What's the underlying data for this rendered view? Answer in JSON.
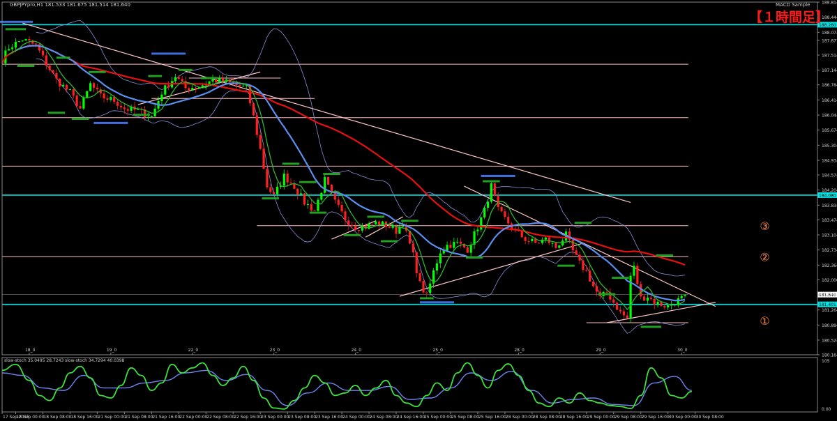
{
  "window": {
    "header_text": "GBPJPYpro,H1  181.533 181.675 181.514 181.640",
    "indicator_name": "MACD Sample",
    "timeframe_badge": "【１時間足】"
  },
  "colors": {
    "background": "#000000",
    "bull_candle": "#00ff00",
    "bear_candle": "#ff2020",
    "ma_slow": "#e81010",
    "ma_mid": "#5b8ff0",
    "ma_fast": "#2db82d",
    "bollinger": "#8a8fd8",
    "trendline": "#ffc8c8",
    "hline_pink": "#ffc0c0",
    "hline_cyan": "#00e6e6",
    "swing_green": "#22a022",
    "swing_blue": "#3f6fe0",
    "stoch_main": "#3de03d",
    "stoch_signal": "#6f86f0",
    "price_tag_bg": "#ffffff",
    "badge_color": "#ff1a1a",
    "annotation_color": "#ff8a4a"
  },
  "chart_data": {
    "type": "candlestick",
    "symbol": "GBPJPYpro",
    "timeframe": "H1",
    "ohlc_header": {
      "open": 181.533,
      "high": 181.675,
      "low": 181.514,
      "close": 181.64
    },
    "y_axis": {
      "min": 180.164,
      "max": 188.814,
      "ticks": [
        188.814,
        188.444,
        188.074,
        187.877,
        187.514,
        187.144,
        186.784,
        186.414,
        186.044,
        185.674,
        185.304,
        184.934,
        184.574,
        184.204,
        183.834,
        183.474,
        183.104,
        182.734,
        182.364,
        182.0,
        181.634,
        181.264,
        180.894,
        180.524,
        180.164
      ]
    },
    "x_axis": {
      "ticks": [
        {
          "label": "17 Sep 2015",
          "t": 0
        },
        {
          "label": "18 Sep 00:00",
          "t": 4
        },
        {
          "label": "18 Sep 08:00",
          "t": 12
        },
        {
          "label": "18 Sep 16:00",
          "t": 20
        },
        {
          "label": "21 Sep 00:00",
          "t": 28
        },
        {
          "label": "21 Sep 08:00",
          "t": 36
        },
        {
          "label": "21 Sep 16:00",
          "t": 44
        },
        {
          "label": "22 Sep 00:00",
          "t": 52
        },
        {
          "label": "22 Sep 08:00",
          "t": 60
        },
        {
          "label": "22 Sep 16:00",
          "t": 68
        },
        {
          "label": "23 Sep 00:00",
          "t": 76
        },
        {
          "label": "23 Sep 08:00",
          "t": 84
        },
        {
          "label": "23 Sep 16:00",
          "t": 92
        },
        {
          "label": "24 Sep 00:00",
          "t": 100
        },
        {
          "label": "24 Sep 08:00",
          "t": 108
        },
        {
          "label": "24 Sep 16:00",
          "t": 116
        },
        {
          "label": "25 Sep 00:00",
          "t": 124
        },
        {
          "label": "25 Sep 08:00",
          "t": 132
        },
        {
          "label": "25 Sep 16:00",
          "t": 140
        },
        {
          "label": "28 Sep 00:00",
          "t": 148
        },
        {
          "label": "28 Sep 08:00",
          "t": 156
        },
        {
          "label": "28 Sep 16:00",
          "t": 164
        },
        {
          "label": "29 Sep 00:00",
          "t": 172
        },
        {
          "label": "29 Sep 08:00",
          "t": 180
        },
        {
          "label": "29 Sep 16:00",
          "t": 188
        },
        {
          "label": "30 Sep 00:00",
          "t": 196
        },
        {
          "label": "30 Sep 08:00",
          "t": 204
        }
      ],
      "day_labels": [
        {
          "label": "18_0",
          "t": 8
        },
        {
          "label": "19_0",
          "t": 32
        },
        {
          "label": "22_0",
          "t": 56
        },
        {
          "label": "23_0",
          "t": 80
        },
        {
          "label": "24_0",
          "t": 104
        },
        {
          "label": "25_0",
          "t": 128
        },
        {
          "label": "28_0",
          "t": 152
        },
        {
          "label": "29_0",
          "t": 176
        },
        {
          "label": "30_0",
          "t": 200
        }
      ]
    },
    "path_keypoints": [
      [
        0,
        187.4
      ],
      [
        2,
        187.7
      ],
      [
        6,
        187.9
      ],
      [
        10,
        187.75
      ],
      [
        13,
        187.3
      ],
      [
        16,
        186.9
      ],
      [
        20,
        186.6
      ],
      [
        23,
        186.2
      ],
      [
        26,
        186.8
      ],
      [
        29,
        186.5
      ],
      [
        33,
        186.4
      ],
      [
        36,
        186.2
      ],
      [
        40,
        186.15
      ],
      [
        44,
        186.0
      ],
      [
        47,
        186.6
      ],
      [
        51,
        187.0
      ],
      [
        54,
        186.7
      ],
      [
        58,
        186.75
      ],
      [
        62,
        186.9
      ],
      [
        66,
        186.85
      ],
      [
        70,
        186.75
      ],
      [
        72,
        186.7
      ],
      [
        74,
        186.0
      ],
      [
        76,
        185.2
      ],
      [
        78,
        184.3
      ],
      [
        80,
        184.05
      ],
      [
        83,
        184.55
      ],
      [
        86,
        184.3
      ],
      [
        89,
        183.9
      ],
      [
        92,
        183.7
      ],
      [
        95,
        184.45
      ],
      [
        98,
        183.9
      ],
      [
        101,
        183.5
      ],
      [
        104,
        183.3
      ],
      [
        107,
        183.3
      ],
      [
        110,
        183.4
      ],
      [
        113,
        183.35
      ],
      [
        116,
        183.2
      ],
      [
        118,
        183.4
      ],
      [
        121,
        182.6
      ],
      [
        123,
        181.9
      ],
      [
        125,
        181.6
      ],
      [
        127,
        182.2
      ],
      [
        129,
        182.7
      ],
      [
        131,
        182.85
      ],
      [
        134,
        182.9
      ],
      [
        137,
        182.75
      ],
      [
        140,
        183.3
      ],
      [
        142,
        183.7
      ],
      [
        144,
        184.3
      ],
      [
        146,
        183.7
      ],
      [
        148,
        183.5
      ],
      [
        151,
        183.2
      ],
      [
        154,
        183.0
      ],
      [
        157,
        182.9
      ],
      [
        160,
        183.0
      ],
      [
        163,
        182.8
      ],
      [
        166,
        183.1
      ],
      [
        168,
        182.7
      ],
      [
        170,
        182.4
      ],
      [
        172,
        182.2
      ],
      [
        174,
        181.85
      ],
      [
        176,
        181.55
      ],
      [
        178,
        181.7
      ],
      [
        180,
        181.45
      ],
      [
        182,
        181.2
      ],
      [
        184,
        181.05
      ],
      [
        185,
        182.1
      ],
      [
        186,
        182.3
      ],
      [
        188,
        181.55
      ],
      [
        190,
        181.6
      ],
      [
        192,
        181.45
      ],
      [
        194,
        181.4
      ],
      [
        196,
        181.35
      ],
      [
        198,
        181.45
      ],
      [
        200,
        181.55
      ],
      [
        201,
        181.64
      ]
    ],
    "current_price": 181.64,
    "horizontal_lines": [
      {
        "price": 188.26,
        "color": "cyan",
        "label": "188.260"
      },
      {
        "price": 187.29,
        "color": "pink",
        "t_from": 0,
        "t_to": 202
      },
      {
        "price": 186.95,
        "color": "pink",
        "t_from": 55,
        "t_to": 82
      },
      {
        "price": 186.45,
        "color": "pink",
        "t_from": 44,
        "t_to": 92
      },
      {
        "price": 185.98,
        "color": "pink",
        "t_from": 0,
        "t_to": 202
      },
      {
        "price": 184.79,
        "color": "pink",
        "t_from": 0,
        "t_to": 202
      },
      {
        "price": 184.08,
        "color": "cyan",
        "label": "184.080"
      },
      {
        "price": 183.33,
        "color": "pink",
        "t_from": 75,
        "t_to": 202
      },
      {
        "price": 182.57,
        "color": "pink",
        "t_from": 0,
        "t_to": 202
      },
      {
        "price": 181.4,
        "color": "cyan",
        "label": "181.401"
      },
      {
        "price": 180.95,
        "color": "pink",
        "t_from": 172,
        "t_to": 202
      },
      {
        "price": 181.64,
        "color": "gray",
        "t_from": 0,
        "t_to": 202
      }
    ],
    "trend_lines": [
      {
        "t1": 6,
        "p1": 188.3,
        "t2": 185,
        "p2": 183.9
      },
      {
        "t1": 40,
        "p1": 186.3,
        "t2": 76,
        "p2": 187.1
      },
      {
        "t1": 136,
        "p1": 184.3,
        "t2": 210,
        "p2": 181.35
      },
      {
        "t1": 117,
        "p1": 181.6,
        "t2": 171,
        "p2": 182.9
      },
      {
        "t1": 178,
        "p1": 180.95,
        "t2": 210,
        "p2": 181.45
      },
      {
        "t1": 97,
        "p1": 183.0,
        "t2": 110,
        "p2": 183.45
      },
      {
        "t1": 107,
        "p1": 183.05,
        "t2": 118,
        "p2": 183.55
      }
    ],
    "swing_markers": [
      {
        "t": 4,
        "p": 188.33,
        "c": "blue",
        "w": 10
      },
      {
        "t": 4,
        "p": 188.15,
        "c": "green",
        "w": 6
      },
      {
        "t": 7,
        "p": 187.25,
        "c": "green",
        "w": 5
      },
      {
        "t": 18,
        "p": 187.45,
        "c": "green",
        "w": 4
      },
      {
        "t": 16,
        "p": 186.1,
        "c": "green",
        "w": 5
      },
      {
        "t": 23,
        "p": 185.95,
        "c": "green",
        "w": 5
      },
      {
        "t": 28,
        "p": 187.1,
        "c": "green",
        "w": 5
      },
      {
        "t": 32,
        "p": 185.85,
        "c": "blue",
        "w": 10
      },
      {
        "t": 41,
        "p": 186.05,
        "c": "green",
        "w": 5
      },
      {
        "t": 49,
        "p": 187.55,
        "c": "blue",
        "w": 10
      },
      {
        "t": 45,
        "p": 187.0,
        "c": "green",
        "w": 4
      },
      {
        "t": 54,
        "p": 187.15,
        "c": "green",
        "w": 4
      },
      {
        "t": 61,
        "p": 186.95,
        "c": "green",
        "w": 5
      },
      {
        "t": 79,
        "p": 184.0,
        "c": "green",
        "w": 5
      },
      {
        "t": 85,
        "p": 184.85,
        "c": "green",
        "w": 5
      },
      {
        "t": 90,
        "p": 184.4,
        "c": "green",
        "w": 5
      },
      {
        "t": 97,
        "p": 184.6,
        "c": "green",
        "w": 5
      },
      {
        "t": 93,
        "p": 183.65,
        "c": "green",
        "w": 5
      },
      {
        "t": 103,
        "p": 183.1,
        "c": "green",
        "w": 5
      },
      {
        "t": 110,
        "p": 183.55,
        "c": "green",
        "w": 5
      },
      {
        "t": 114,
        "p": 182.95,
        "c": "green",
        "w": 5
      },
      {
        "t": 120,
        "p": 183.45,
        "c": "green",
        "w": 5
      },
      {
        "t": 125,
        "p": 181.55,
        "c": "green",
        "w": 4
      },
      {
        "t": 128,
        "p": 181.45,
        "c": "blue",
        "w": 10
      },
      {
        "t": 139,
        "p": 182.55,
        "c": "green",
        "w": 5
      },
      {
        "t": 146,
        "p": 184.55,
        "c": "blue",
        "w": 10
      },
      {
        "t": 144,
        "p": 184.42,
        "c": "green",
        "w": 5
      },
      {
        "t": 166,
        "p": 182.35,
        "c": "green",
        "w": 5
      },
      {
        "t": 171,
        "p": 183.4,
        "c": "green",
        "w": 5
      },
      {
        "t": 178,
        "p": 181.65,
        "c": "green",
        "w": 5
      },
      {
        "t": 182,
        "p": 182.05,
        "c": "green",
        "w": 5
      },
      {
        "t": 191,
        "p": 180.85,
        "c": "green",
        "w": 6
      },
      {
        "t": 195,
        "p": 182.6,
        "c": "green",
        "w": 5
      }
    ],
    "annotations": [
      {
        "label": "③",
        "t": 223,
        "p": 183.33
      },
      {
        "label": "②",
        "t": 223,
        "p": 182.57
      },
      {
        "label": "①",
        "t": 223,
        "p": 181.0
      }
    ],
    "subwindow": {
      "label": "slow-stoch 35.0495 28.7243 slow-stoch 34.7294 40.0398",
      "y_labels": [
        "105",
        "0.00"
      ],
      "main_points": [
        [
          0,
          80
        ],
        [
          4,
          92
        ],
        [
          8,
          60
        ],
        [
          11,
          30
        ],
        [
          14,
          20
        ],
        [
          17,
          45
        ],
        [
          20,
          75
        ],
        [
          23,
          88
        ],
        [
          26,
          65
        ],
        [
          29,
          30
        ],
        [
          32,
          25
        ],
        [
          35,
          50
        ],
        [
          38,
          85
        ],
        [
          41,
          70
        ],
        [
          44,
          40
        ],
        [
          47,
          55
        ],
        [
          50,
          92
        ],
        [
          53,
          75
        ],
        [
          56,
          85
        ],
        [
          59,
          95
        ],
        [
          62,
          70
        ],
        [
          65,
          50
        ],
        [
          68,
          65
        ],
        [
          71,
          88
        ],
        [
          74,
          60
        ],
        [
          77,
          25
        ],
        [
          80,
          5
        ],
        [
          83,
          3
        ],
        [
          86,
          20
        ],
        [
          89,
          45
        ],
        [
          92,
          70
        ],
        [
          95,
          55
        ],
        [
          98,
          30
        ],
        [
          101,
          35
        ],
        [
          104,
          50
        ],
        [
          107,
          30
        ],
        [
          110,
          45
        ],
        [
          113,
          60
        ],
        [
          116,
          30
        ],
        [
          119,
          15
        ],
        [
          122,
          8
        ],
        [
          125,
          30
        ],
        [
          128,
          55
        ],
        [
          131,
          40
        ],
        [
          134,
          75
        ],
        [
          137,
          95
        ],
        [
          140,
          70
        ],
        [
          143,
          45
        ],
        [
          146,
          80
        ],
        [
          149,
          93
        ],
        [
          152,
          70
        ],
        [
          155,
          40
        ],
        [
          158,
          15
        ],
        [
          161,
          8
        ],
        [
          164,
          25
        ],
        [
          167,
          15
        ],
        [
          170,
          35
        ],
        [
          173,
          20
        ],
        [
          176,
          15
        ],
        [
          179,
          10
        ],
        [
          182,
          8
        ],
        [
          185,
          4
        ],
        [
          188,
          30
        ],
        [
          191,
          85
        ],
        [
          194,
          65
        ],
        [
          197,
          30
        ],
        [
          200,
          25
        ],
        [
          203,
          38
        ]
      ],
      "signal_points": [
        [
          0,
          75
        ],
        [
          6,
          70
        ],
        [
          12,
          45
        ],
        [
          18,
          40
        ],
        [
          24,
          70
        ],
        [
          30,
          45
        ],
        [
          36,
          45
        ],
        [
          42,
          55
        ],
        [
          48,
          60
        ],
        [
          54,
          75
        ],
        [
          60,
          80
        ],
        [
          66,
          60
        ],
        [
          72,
          72
        ],
        [
          78,
          40
        ],
        [
          84,
          10
        ],
        [
          90,
          35
        ],
        [
          96,
          55
        ],
        [
          102,
          40
        ],
        [
          108,
          40
        ],
        [
          114,
          48
        ],
        [
          120,
          22
        ],
        [
          126,
          25
        ],
        [
          132,
          45
        ],
        [
          138,
          75
        ],
        [
          144,
          60
        ],
        [
          150,
          78
        ],
        [
          156,
          40
        ],
        [
          162,
          15
        ],
        [
          168,
          22
        ],
        [
          174,
          25
        ],
        [
          180,
          12
        ],
        [
          186,
          10
        ],
        [
          192,
          55
        ],
        [
          198,
          68
        ],
        [
          203,
          40
        ]
      ]
    }
  }
}
